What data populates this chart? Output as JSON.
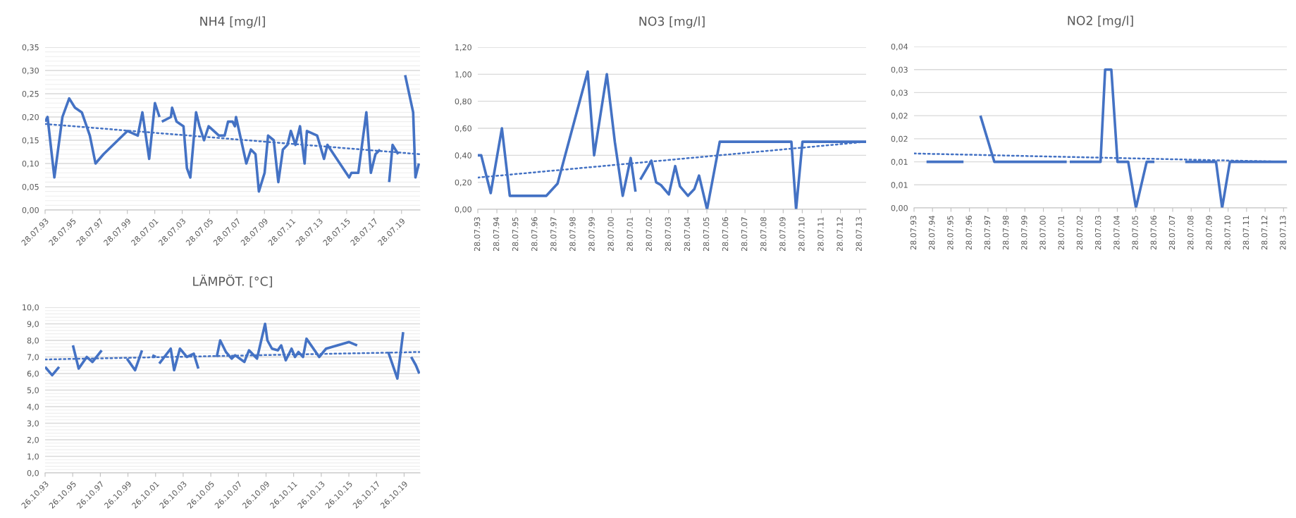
{
  "chart_data": [
    {
      "type": "line",
      "title": "NH4 [mg/l]",
      "grid": "y",
      "xlim": [
        "1993-07-28",
        "2020-12"
      ],
      "xticks": [
        {
          "value": "1993-07-28",
          "label": "28.07.93"
        },
        {
          "value": "1995-07-28",
          "label": "28.07.95"
        },
        {
          "value": "1997-07-28",
          "label": "28.07.97"
        },
        {
          "value": "1999-07-28",
          "label": "28.07.99"
        },
        {
          "value": "2001-07-28",
          "label": "28.07.01"
        },
        {
          "value": "2003-07-28",
          "label": "28.07.03"
        },
        {
          "value": "2005-07-28",
          "label": "28.07.05"
        },
        {
          "value": "2007-07-28",
          "label": "28.07.07"
        },
        {
          "value": "2009-07-28",
          "label": "28.07.09"
        },
        {
          "value": "2011-07-28",
          "label": "28.07.11"
        },
        {
          "value": "2013-07-28",
          "label": "28.07.13"
        },
        {
          "value": "2015-07-28",
          "label": "28.07.15"
        },
        {
          "value": "2017-07-28",
          "label": "28.07.17"
        },
        {
          "value": "2019-07-28",
          "label": "28.07.19"
        }
      ],
      "ylim": [
        0,
        0.35
      ],
      "yticks": [
        {
          "value": 0,
          "label": "0,00"
        },
        {
          "value": 0.01,
          "label": null
        },
        {
          "value": 0.02,
          "label": null
        },
        {
          "value": 0.03,
          "label": null
        },
        {
          "value": 0.04,
          "label": null
        },
        {
          "value": 0.05,
          "label": "0,05"
        },
        {
          "value": 0.06,
          "label": null
        },
        {
          "value": 0.07,
          "label": null
        },
        {
          "value": 0.08,
          "label": null
        },
        {
          "value": 0.09,
          "label": null
        },
        {
          "value": 0.1,
          "label": "0,10"
        },
        {
          "value": 0.11,
          "label": null
        },
        {
          "value": 0.12,
          "label": null
        },
        {
          "value": 0.13,
          "label": null
        },
        {
          "value": 0.14,
          "label": null
        },
        {
          "value": 0.15,
          "label": "0,15"
        },
        {
          "value": 0.16,
          "label": null
        },
        {
          "value": 0.17,
          "label": null
        },
        {
          "value": 0.18,
          "label": null
        },
        {
          "value": 0.19,
          "label": null
        },
        {
          "value": 0.2,
          "label": "0,20"
        },
        {
          "value": 0.21,
          "label": null
        },
        {
          "value": 0.22,
          "label": null
        },
        {
          "value": 0.23,
          "label": null
        },
        {
          "value": 0.24,
          "label": null
        },
        {
          "value": 0.25,
          "label": "0,25"
        },
        {
          "value": 0.26,
          "label": null
        },
        {
          "value": 0.27,
          "label": null
        },
        {
          "value": 0.28,
          "label": null
        },
        {
          "value": 0.29,
          "label": null
        },
        {
          "value": 0.3,
          "label": "0,30"
        },
        {
          "value": 0.31,
          "label": null
        },
        {
          "value": 0.32,
          "label": null
        },
        {
          "value": 0.33,
          "label": null
        },
        {
          "value": 0.34,
          "label": null
        },
        {
          "value": 0.35,
          "label": "0,35"
        }
      ],
      "series": [
        {
          "color": "#4472c4",
          "line_style": "solid",
          "x": [
            "1993-07-28",
            "1993-10",
            "1994-04",
            "1994-11",
            "1995-05",
            "1995-10",
            "1996-04",
            "1996-11",
            "1997-04",
            "1997-11",
            "1999-08",
            "2000-05",
            "2000-09",
            "2001-03",
            "2001-08",
            "2001-12",
            "2002-01",
            "2002-02",
            "2002-10",
            "2002-11",
            "2003-03",
            "2003-09",
            "2003-12",
            "2004-03",
            "2004-08",
            "2004-11",
            "2005-03",
            "2005-07",
            "2006-04",
            "2006-09",
            "2006-12",
            "2007-04",
            "2007-06",
            "2007-07",
            "2008-04",
            "2008-08",
            "2008-12",
            "2009-03",
            "2009-08",
            "2009-11",
            "2010-04",
            "2010-08",
            "2010-12",
            "2011-04",
            "2011-07",
            "2011-11",
            "2012-03",
            "2012-07",
            "2012-09",
            "2013-06",
            "2013-12",
            "2014-03",
            "2015-10",
            "2015-12",
            "2016-06",
            "2017-01",
            "2017-05",
            "2017-09",
            "2018-01",
            "2018-05",
            "2018-09",
            "2018-12",
            "2019-05",
            "2019-08",
            "2019-11",
            "2020-06",
            "2020-08",
            "2020-11"
          ],
          "values": [
            0.19,
            0.2,
            0.07,
            0.2,
            0.24,
            0.22,
            0.21,
            0.16,
            0.1,
            0.12,
            0.17,
            0.16,
            0.21,
            0.11,
            0.23,
            0.2,
            null,
            0.19,
            0.2,
            0.22,
            0.19,
            0.18,
            0.09,
            0.07,
            0.21,
            0.18,
            0.15,
            0.18,
            0.16,
            0.16,
            0.19,
            0.19,
            0.18,
            0.2,
            0.1,
            0.13,
            0.12,
            0.04,
            0.08,
            0.16,
            0.15,
            0.06,
            0.13,
            0.14,
            0.17,
            0.14,
            0.18,
            0.1,
            0.17,
            0.16,
            0.11,
            0.14,
            0.07,
            0.08,
            0.08,
            0.21,
            0.08,
            0.12,
            0.13,
            null,
            0.06,
            0.14,
            0.12,
            null,
            0.29,
            0.21,
            0.07,
            0.1
          ]
        },
        {
          "color": "#4472c4",
          "line_style": "dotted",
          "x": [
            "1993-07-28",
            "2020-12"
          ],
          "values": [
            0.185,
            0.12
          ]
        }
      ]
    },
    {
      "type": "line",
      "title": "NO3 [mg/l]",
      "grid": "y",
      "xlim": [
        "1993-07-28",
        "2013-12"
      ],
      "xticks": [
        {
          "value": "1993-07-28",
          "label": "28.07.93"
        },
        {
          "value": "1994-07-28",
          "label": "28.07.94"
        },
        {
          "value": "1995-07-28",
          "label": "28.07.95"
        },
        {
          "value": "1996-07-28",
          "label": "28.07.96"
        },
        {
          "value": "1997-07-28",
          "label": "28.07.97"
        },
        {
          "value": "1998-07-28",
          "label": "28.07.98"
        },
        {
          "value": "1999-07-28",
          "label": "28.07.99"
        },
        {
          "value": "2000-07-28",
          "label": "28.07.00"
        },
        {
          "value": "2001-07-28",
          "label": "28.07.01"
        },
        {
          "value": "2002-07-28",
          "label": "28.07.02"
        },
        {
          "value": "2003-07-28",
          "label": "28.07.03"
        },
        {
          "value": "2004-07-28",
          "label": "28.07.04"
        },
        {
          "value": "2005-07-28",
          "label": "28.07.05"
        },
        {
          "value": "2006-07-28",
          "label": "28.07.06"
        },
        {
          "value": "2007-07-28",
          "label": "28.07.07"
        },
        {
          "value": "2008-07-28",
          "label": "28.07.08"
        },
        {
          "value": "2009-07-28",
          "label": "28.07.09"
        },
        {
          "value": "2010-07-28",
          "label": "28.07.10"
        },
        {
          "value": "2011-07-28",
          "label": "28.07.11"
        },
        {
          "value": "2012-07-28",
          "label": "28.07.12"
        },
        {
          "value": "2013-07-28",
          "label": "28.07.13"
        }
      ],
      "ylim": [
        0,
        1.2
      ],
      "yticks": [
        {
          "value": 0,
          "label": "0,00"
        },
        {
          "value": 0.2,
          "label": "0,20"
        },
        {
          "value": 0.4,
          "label": "0,40"
        },
        {
          "value": 0.6,
          "label": "0,60"
        },
        {
          "value": 0.8,
          "label": "0,80"
        },
        {
          "value": 1.0,
          "label": "1,00"
        },
        {
          "value": 1.2,
          "label": "1,20"
        }
      ],
      "series": [
        {
          "color": "#4472c4",
          "line_style": "solid",
          "x": [
            "1993-07-28",
            "1993-10",
            "1994-04",
            "1994-11",
            "1995-04",
            "1997-03",
            "1997-10",
            "1999-05",
            "1999-09",
            "2000-05",
            "2000-10",
            "2001-03",
            "2001-08",
            "2001-11",
            "2001-12",
            "2002-02",
            "2002-09",
            "2002-12",
            "2003-03",
            "2003-08",
            "2003-12",
            "2004-03",
            "2004-08",
            "2004-12",
            "2005-03",
            "2005-08",
            "2006-04",
            "2010-01",
            "2010-04",
            "2010-08",
            "2013-12"
          ],
          "values": [
            0.4,
            0.4,
            0.12,
            0.6,
            0.1,
            0.1,
            0.19,
            1.02,
            0.4,
            1.0,
            0.5,
            0.1,
            0.38,
            0.13,
            null,
            0.22,
            0.36,
            0.2,
            0.18,
            0.11,
            0.32,
            0.17,
            0.1,
            0.15,
            0.25,
            0.0,
            0.5,
            0.5,
            0.0,
            0.5,
            0.5
          ]
        },
        {
          "color": "#4472c4",
          "line_style": "dotted",
          "x": [
            "1993-07-28",
            "2013-12"
          ],
          "values": [
            0.235,
            0.5
          ]
        }
      ]
    },
    {
      "type": "line",
      "title": "NO2 [mg/l]",
      "grid": "y",
      "xlim": [
        "1993-07-28",
        "2013-10"
      ],
      "xticks": [
        {
          "value": "1993-07-28",
          "label": "28.07.93"
        },
        {
          "value": "1994-07-28",
          "label": "28.07.94"
        },
        {
          "value": "1995-07-28",
          "label": "28.07.95"
        },
        {
          "value": "1996-07-28",
          "label": "28.07.96"
        },
        {
          "value": "1997-07-28",
          "label": "28.07.97"
        },
        {
          "value": "1998-07-28",
          "label": "28.07.98"
        },
        {
          "value": "1999-07-28",
          "label": "28.07.99"
        },
        {
          "value": "2000-07-28",
          "label": "28.07.00"
        },
        {
          "value": "2001-07-28",
          "label": "28.07.01"
        },
        {
          "value": "2002-07-28",
          "label": "28.07.02"
        },
        {
          "value": "2003-07-28",
          "label": "28.07.03"
        },
        {
          "value": "2004-07-28",
          "label": "28.07.04"
        },
        {
          "value": "2005-07-28",
          "label": "28.07.05"
        },
        {
          "value": "2006-07-28",
          "label": "28.07.06"
        },
        {
          "value": "2007-07-28",
          "label": "28.07.07"
        },
        {
          "value": "2008-07-28",
          "label": "28.07.08"
        },
        {
          "value": "2009-07-28",
          "label": "28.07.09"
        },
        {
          "value": "2010-07-28",
          "label": "28.07.10"
        },
        {
          "value": "2011-07-28",
          "label": "28.07.11"
        },
        {
          "value": "2012-07-28",
          "label": "28.07.12"
        },
        {
          "value": "2013-07-28",
          "label": "28.07.13"
        }
      ],
      "ylim": [
        0,
        0.035
      ],
      "yticks": [
        {
          "value": 0,
          "label": "0,00"
        },
        {
          "value": 0.005,
          "label": "0,01"
        },
        {
          "value": 0.01,
          "label": "0,01"
        },
        {
          "value": 0.015,
          "label": "0,02"
        },
        {
          "value": 0.02,
          "label": "0,02"
        },
        {
          "value": 0.025,
          "label": "0,03"
        },
        {
          "value": 0.03,
          "label": "0,03"
        },
        {
          "value": 0.035,
          "label": "0,04"
        }
      ],
      "series": [
        {
          "color": "#4472c4",
          "line_style": "solid",
          "x": [
            "1994-04",
            "1996-04",
            "1996-10",
            "1997-03",
            "1997-12",
            "2001-11",
            "2001-12",
            "2002-01",
            "2003-09",
            "2003-12",
            "2004-04",
            "2004-08",
            "2005-03",
            "2005-08",
            "2006-03",
            "2006-08",
            "2007-06",
            "2008-04",
            "2009-12",
            "2010-04",
            "2010-09",
            "2013-10"
          ],
          "values": [
            0.01,
            0.01,
            null,
            0.02,
            0.01,
            0.01,
            null,
            0.01,
            0.01,
            0.03,
            0.03,
            0.01,
            0.01,
            0.0,
            0.01,
            0.01,
            null,
            0.01,
            0.01,
            0.0,
            0.01,
            0.01
          ]
        },
        {
          "color": "#4472c4",
          "line_style": "dotted",
          "x": [
            "1993-07-28",
            "2013-10"
          ],
          "values": [
            0.0118,
            0.01
          ]
        }
      ]
    },
    {
      "type": "line",
      "title": "LÄMPÖT. [°C]",
      "grid": "y",
      "xlim": [
        "1993-10-26",
        "2020-12-20"
      ],
      "xticks": [
        {
          "value": "1993-10-26",
          "label": "26.10.93"
        },
        {
          "value": "1995-10-26",
          "label": "26.10.95"
        },
        {
          "value": "1997-10-26",
          "label": "26.10.97"
        },
        {
          "value": "1999-10-26",
          "label": "26.10.99"
        },
        {
          "value": "2001-10-26",
          "label": "26.10.01"
        },
        {
          "value": "2003-10-26",
          "label": "26.10.03"
        },
        {
          "value": "2005-10-26",
          "label": "26.10.05"
        },
        {
          "value": "2007-10-26",
          "label": "26.10.07"
        },
        {
          "value": "2009-10-26",
          "label": "26.10.09"
        },
        {
          "value": "2011-10-26",
          "label": "26.10.11"
        },
        {
          "value": "2013-10-26",
          "label": "26.10.13"
        },
        {
          "value": "2015-10-26",
          "label": "26.10.15"
        },
        {
          "value": "2017-10-26",
          "label": "26.10.17"
        },
        {
          "value": "2019-10-26",
          "label": "26.10.19"
        }
      ],
      "ylim": [
        0,
        10
      ],
      "yticks": [
        {
          "value": 0,
          "label": "0,0"
        },
        {
          "value": 0.2,
          "label": null
        },
        {
          "value": 0.4,
          "label": null
        },
        {
          "value": 0.6,
          "label": null
        },
        {
          "value": 0.8,
          "label": null
        },
        {
          "value": 1,
          "label": "1,0"
        },
        {
          "value": 1.2,
          "label": null
        },
        {
          "value": 1.4,
          "label": null
        },
        {
          "value": 1.6,
          "label": null
        },
        {
          "value": 1.8,
          "label": null
        },
        {
          "value": 2,
          "label": "2,0"
        },
        {
          "value": 2.2,
          "label": null
        },
        {
          "value": 2.4,
          "label": null
        },
        {
          "value": 2.6,
          "label": null
        },
        {
          "value": 2.8,
          "label": null
        },
        {
          "value": 3,
          "label": "3,0"
        },
        {
          "value": 3.2,
          "label": null
        },
        {
          "value": 3.4,
          "label": null
        },
        {
          "value": 3.6,
          "label": null
        },
        {
          "value": 3.8,
          "label": null
        },
        {
          "value": 4,
          "label": "4,0"
        },
        {
          "value": 4.2,
          "label": null
        },
        {
          "value": 4.4,
          "label": null
        },
        {
          "value": 4.6,
          "label": null
        },
        {
          "value": 4.8,
          "label": null
        },
        {
          "value": 5,
          "label": "5,0"
        },
        {
          "value": 5.2,
          "label": null
        },
        {
          "value": 5.4,
          "label": null
        },
        {
          "value": 5.6,
          "label": null
        },
        {
          "value": 5.8,
          "label": null
        },
        {
          "value": 6,
          "label": "6,0"
        },
        {
          "value": 6.2,
          "label": null
        },
        {
          "value": 6.4,
          "label": null
        },
        {
          "value": 6.6,
          "label": null
        },
        {
          "value": 6.8,
          "label": null
        },
        {
          "value": 7,
          "label": "7,0"
        },
        {
          "value": 7.2,
          "label": null
        },
        {
          "value": 7.4,
          "label": null
        },
        {
          "value": 7.6,
          "label": null
        },
        {
          "value": 7.8,
          "label": null
        },
        {
          "value": 8,
          "label": "8,0"
        },
        {
          "value": 8.2,
          "label": null
        },
        {
          "value": 8.4,
          "label": null
        },
        {
          "value": 8.6,
          "label": null
        },
        {
          "value": 8.8,
          "label": null
        },
        {
          "value": 9,
          "label": "9,0"
        },
        {
          "value": 9.2,
          "label": null
        },
        {
          "value": 9.4,
          "label": null
        },
        {
          "value": 9.6,
          "label": null
        },
        {
          "value": 9.8,
          "label": null
        },
        {
          "value": 10,
          "label": "10,0"
        }
      ],
      "series": [
        {
          "color": "#4472c4",
          "line_style": "solid",
          "x": [
            "1993-10-26",
            "1994-05",
            "1994-11",
            "1995-05",
            "1995-11",
            "1996-04",
            "1996-11",
            "1997-04",
            "1997-12",
            "1998-11",
            "1999-10",
            "2000-05",
            "2000-11",
            "2001-03",
            "2001-08",
            "2001-11",
            "2002-01",
            "2002-02",
            "2002-12",
            "2003-03",
            "2003-08",
            "2004-02",
            "2004-08",
            "2004-12",
            "2005-08",
            "2006-04",
            "2006-07",
            "2006-12",
            "2007-05",
            "2007-08",
            "2008-04",
            "2008-08",
            "2009-03",
            "2009-10",
            "2009-12",
            "2010-04",
            "2010-09",
            "2010-12",
            "2011-04",
            "2011-09",
            "2011-12",
            "2012-03",
            "2012-07",
            "2012-10",
            "2013-09",
            "2014-03",
            "2015-11",
            "2016-06",
            "2017-08",
            "2018-09",
            "2019-05",
            "2019-10",
            "2020-01",
            "2020-05",
            "2020-09",
            "2020-12"
          ],
          "values": [
            6.4,
            5.9,
            6.4,
            null,
            7.7,
            6.3,
            7.0,
            6.7,
            7.4,
            null,
            6.9,
            6.2,
            7.4,
            null,
            7.1,
            7.0,
            null,
            6.6,
            7.5,
            6.2,
            7.5,
            7.0,
            7.2,
            6.3,
            null,
            7.0,
            8.0,
            7.3,
            6.9,
            7.1,
            6.7,
            7.4,
            6.9,
            9.0,
            8.0,
            7.5,
            7.4,
            7.7,
            6.8,
            7.5,
            7.0,
            7.3,
            7.0,
            8.1,
            7.0,
            7.5,
            7.9,
            7.7,
            null,
            7.3,
            5.7,
            8.5,
            null,
            7.0,
            6.5,
            6.0
          ]
        },
        {
          "color": "#4472c4",
          "line_style": "dotted",
          "x": [
            "1993-10-26",
            "2020-12-20"
          ],
          "values": [
            6.85,
            7.3
          ]
        }
      ]
    }
  ]
}
